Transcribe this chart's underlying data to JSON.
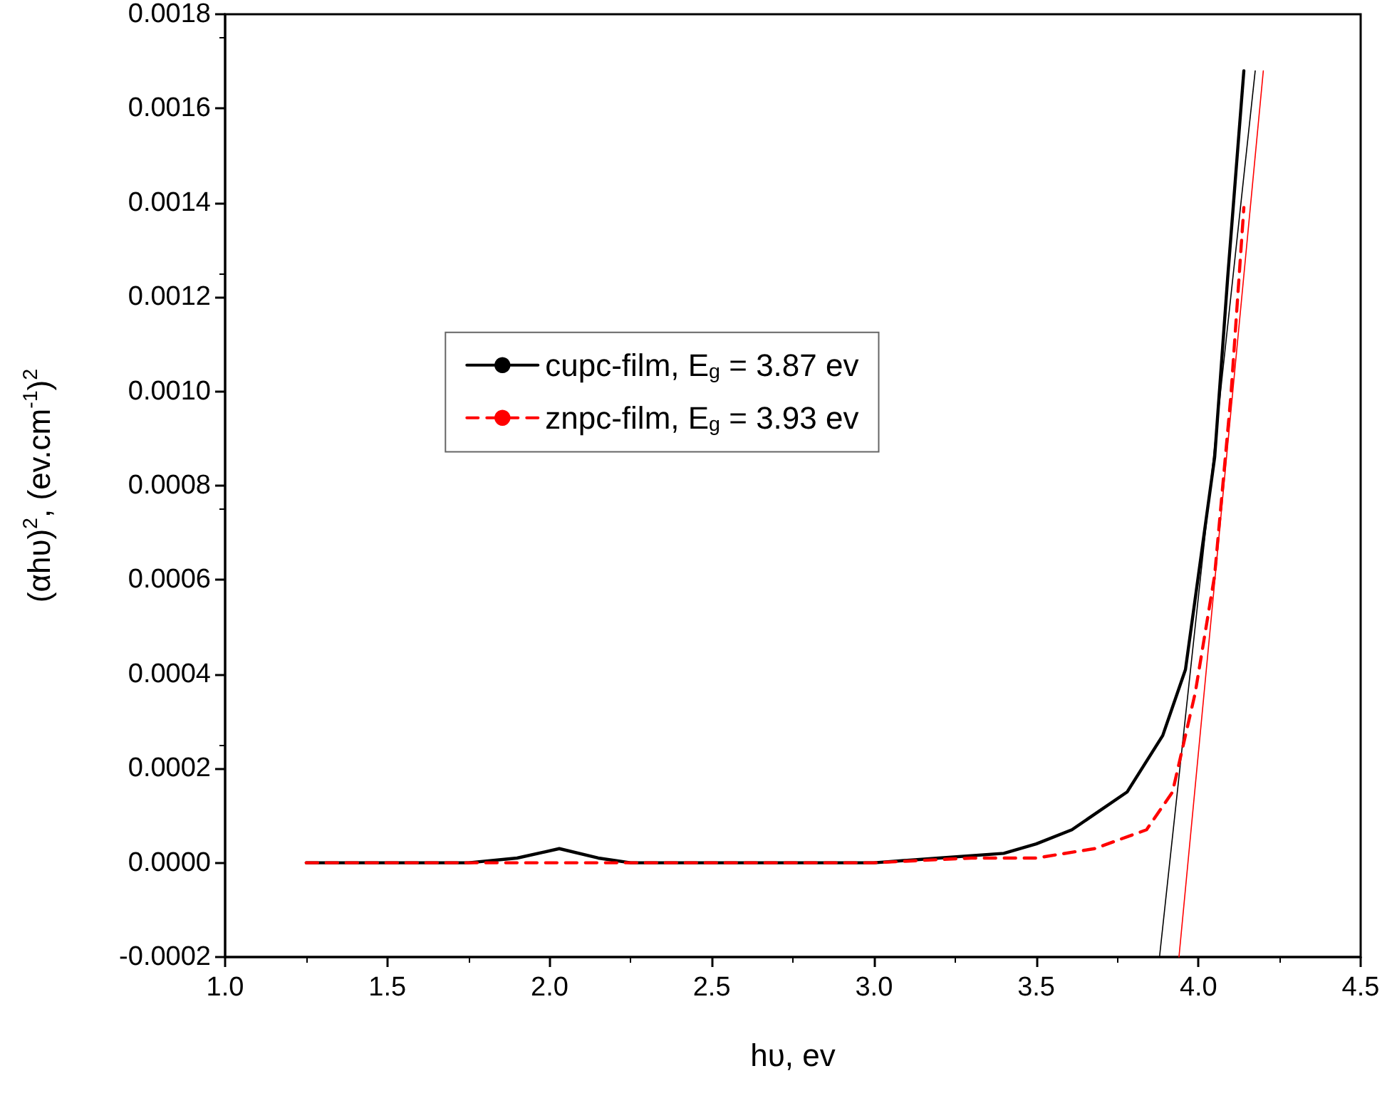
{
  "chart_data": {
    "type": "line",
    "xlabel": "hυ, ev",
    "ylabel": "(αhυ)$^{2}$, (ev.cm$^{-1}$)$^{2}$",
    "xlim": [
      1.0,
      4.5
    ],
    "xticks": [
      {
        "value": 1.0,
        "label": "1.0"
      },
      {
        "value": 1.5,
        "label": "1.5"
      },
      {
        "value": 2.0,
        "label": "2.0"
      },
      {
        "value": 2.5,
        "label": "2.5"
      },
      {
        "value": 3.0,
        "label": "3.0"
      },
      {
        "value": 3.5,
        "label": "3.5"
      },
      {
        "value": 4.0,
        "label": "4.0"
      },
      {
        "value": 4.5,
        "label": "4.5"
      }
    ],
    "ylim": [
      -0.0002,
      0.0018
    ],
    "yticks": [
      {
        "value": -0.0002,
        "label": "-0.0002"
      },
      {
        "value": 0,
        "label": "0.0000"
      },
      {
        "value": 0.0002,
        "label": "0.0002"
      },
      {
        "value": 0.0004,
        "label": "0.0004"
      },
      {
        "value": 0.0006,
        "label": "0.0006"
      },
      {
        "value": 0.0008,
        "label": "0.0008"
      },
      {
        "value": 0.001,
        "label": "0.0010"
      },
      {
        "value": 0.0012,
        "label": "0.0012"
      },
      {
        "value": 0.0014,
        "label": "0.0014"
      },
      {
        "value": 0.0016,
        "label": "0.0016"
      },
      {
        "value": 0.0018,
        "label": "0.0018"
      }
    ],
    "grid": false,
    "legend": "center",
    "marker": "none",
    "series": [
      {
        "name": "cupc-film, E$_{g}$ = 3.87 ev",
        "color": "#000000",
        "line_style": "solid",
        "x": [
          1.25,
          1.5,
          1.75,
          1.9,
          2.03,
          2.15,
          2.25,
          2.5,
          3.0,
          3.2,
          3.4,
          3.5,
          3.61,
          3.78,
          3.89,
          3.96,
          4.0,
          4.05,
          4.09,
          4.14
        ],
        "values": [
          0,
          0,
          0,
          1e-05,
          3e-05,
          1e-05,
          0,
          0,
          0,
          1e-05,
          2e-05,
          4e-05,
          7e-05,
          0.00015,
          0.00027,
          0.00041,
          0.00061,
          0.00086,
          0.00124,
          0.00168
        ]
      },
      {
        "name": "znpc-film, E$_{g}$ = 3.93 ev",
        "color": "#ff0000",
        "line_style": "dashed",
        "x": [
          1.25,
          1.5,
          2.0,
          2.5,
          3.0,
          3.3,
          3.5,
          3.68,
          3.84,
          3.92,
          3.99,
          4.05,
          4.1,
          4.14
        ],
        "values": [
          0,
          0,
          0,
          0,
          0,
          1e-05,
          1e-05,
          3e-05,
          7e-05,
          0.00015,
          0.00036,
          0.00061,
          0.00099,
          0.00139
        ]
      },
      {
        "type": "line",
        "color": "#000000",
        "line_style": "solid",
        "x": [
          3.88,
          4.175
        ],
        "values": [
          -0.0002,
          0.00168
        ]
      },
      {
        "type": "line",
        "color": "#ff0000",
        "line_style": "solid",
        "x": [
          3.94,
          4.2
        ],
        "values": [
          -0.0002,
          0.00168
        ]
      }
    ]
  }
}
